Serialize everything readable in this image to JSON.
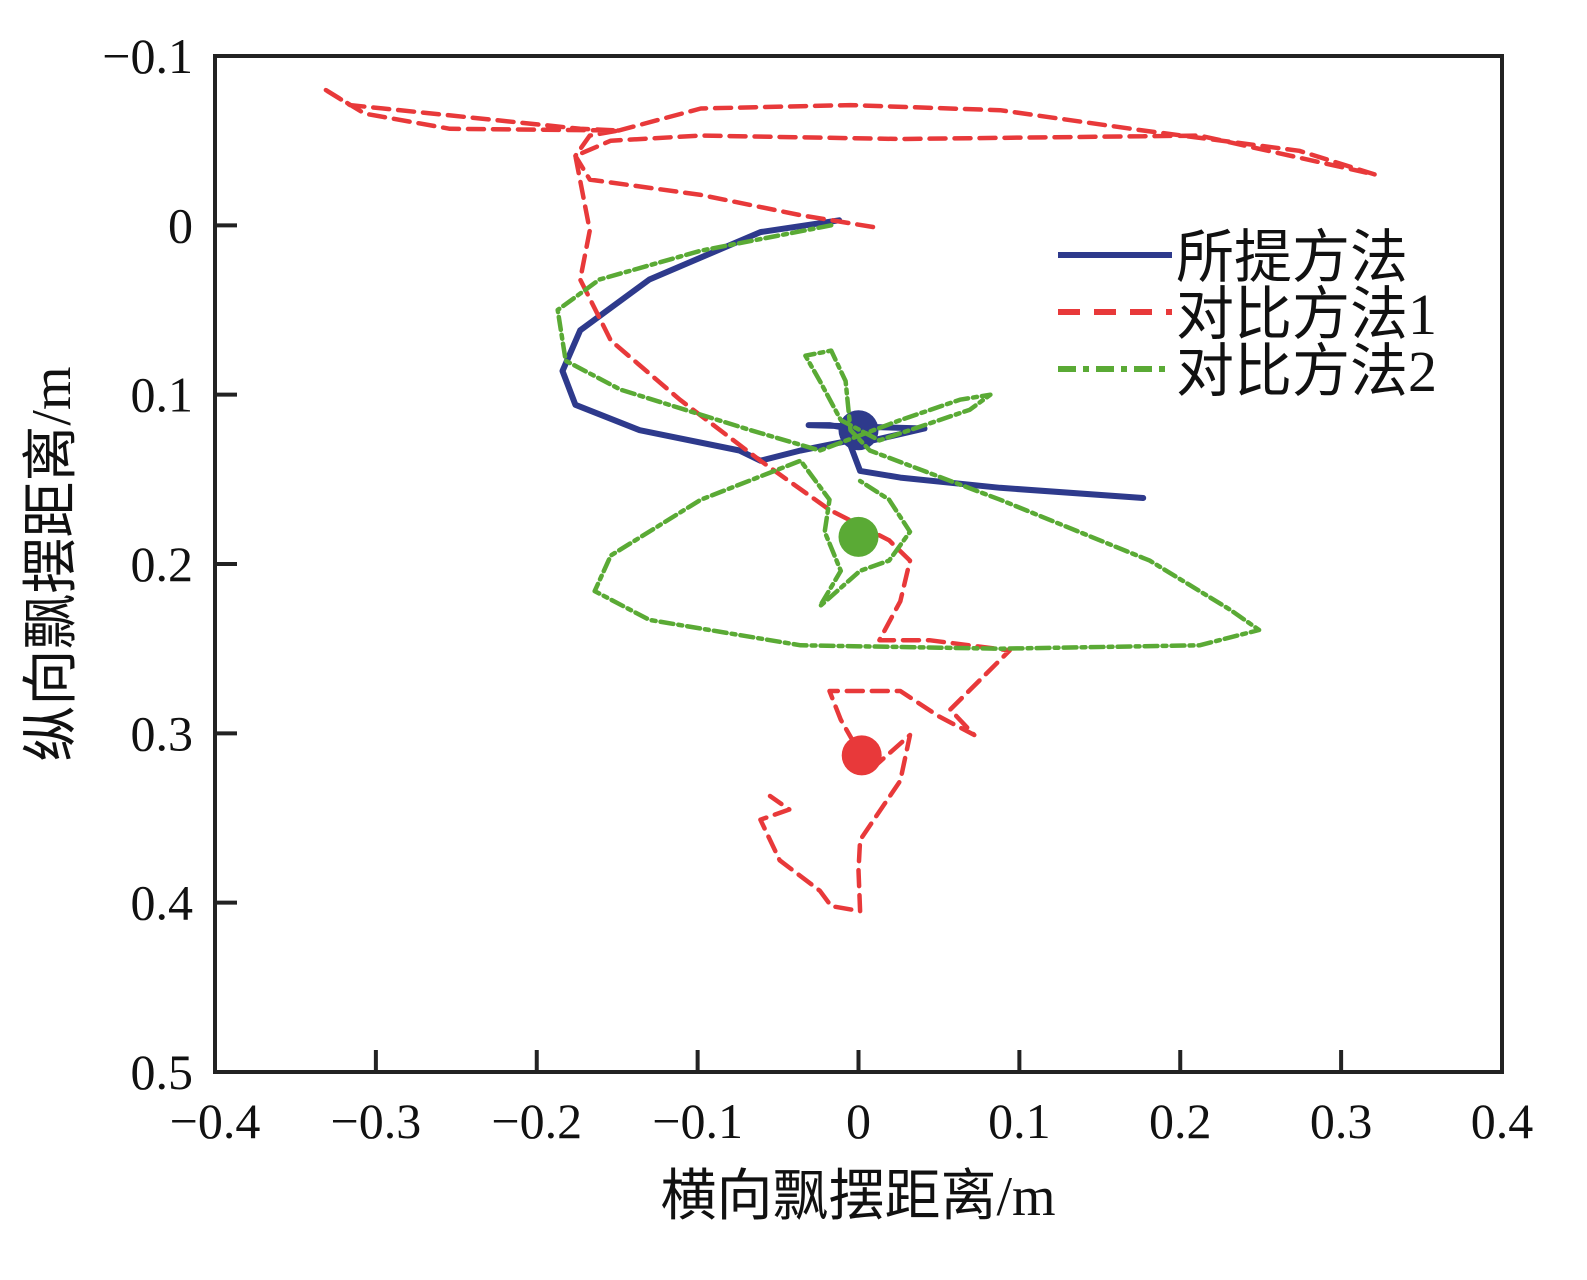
{
  "chart_data": {
    "type": "line",
    "title": "",
    "xlabel": "横向飘摆距离/m",
    "ylabel": "纵向飘摆距离/m",
    "xlim": [
      -0.4,
      0.4
    ],
    "ylim": [
      -0.1,
      0.5
    ],
    "y_inverted": true,
    "xticks": [
      "−0.4",
      "−0.3",
      "−0.2",
      "−0.1",
      "0",
      "0.1",
      "0.2",
      "0.3",
      "0.4"
    ],
    "xtick_values": [
      -0.4,
      -0.3,
      -0.2,
      -0.1,
      0,
      0.1,
      0.2,
      0.3,
      0.4
    ],
    "yticks": [
      "−0.1",
      "0",
      "0.1",
      "0.2",
      "0.3",
      "0.4",
      "0.5"
    ],
    "ytick_values": [
      -0.1,
      0,
      0.1,
      0.2,
      0.3,
      0.4,
      0.5
    ],
    "grid": false,
    "legend_position": "top-right",
    "series": [
      {
        "name": "所提方法",
        "color": "#2e3a8c",
        "style": "solid",
        "points": [
          [
            -0.012,
            -0.003
          ],
          [
            -0.061,
            0.004
          ],
          [
            -0.13,
            0.032
          ],
          [
            -0.173,
            0.062
          ],
          [
            -0.184,
            0.086
          ],
          [
            -0.176,
            0.106
          ],
          [
            -0.136,
            0.121
          ],
          [
            -0.074,
            0.133
          ],
          [
            -0.061,
            0.139
          ],
          [
            -0.036,
            0.133
          ],
          [
            -0.005,
            0.127
          ],
          [
            0.0,
            0.121
          ],
          [
            -0.018,
            0.118
          ],
          [
            -0.031,
            0.118
          ],
          [
            0.041,
            0.12
          ],
          [
            -0.005,
            0.13
          ],
          [
            0.001,
            0.145
          ],
          [
            0.026,
            0.149
          ],
          [
            0.088,
            0.155
          ],
          [
            0.177,
            0.161
          ]
        ],
        "end_marker": [
          0.0,
          0.121
        ]
      },
      {
        "name": "对比方法1",
        "color": "#e8393a",
        "style": "dashed",
        "points": [
          [
            0.009,
            0.001
          ],
          [
            -0.036,
            -0.006
          ],
          [
            -0.098,
            -0.018
          ],
          [
            -0.167,
            -0.027
          ],
          [
            -0.176,
            -0.041
          ],
          [
            -0.167,
            -0.053
          ],
          [
            -0.149,
            -0.056
          ],
          [
            -0.173,
            -0.057
          ],
          [
            -0.316,
            -0.071
          ],
          [
            -0.333,
            -0.081
          ],
          [
            -0.307,
            -0.066
          ],
          [
            -0.254,
            -0.057
          ],
          [
            -0.149,
            -0.056
          ],
          [
            -0.098,
            -0.069
          ],
          [
            -0.005,
            -0.071
          ],
          [
            0.088,
            -0.068
          ],
          [
            0.177,
            -0.056
          ],
          [
            0.274,
            -0.044
          ],
          [
            0.321,
            -0.03
          ],
          [
            0.212,
            -0.053
          ],
          [
            0.026,
            -0.051
          ],
          [
            -0.098,
            -0.053
          ],
          [
            -0.154,
            -0.05
          ],
          [
            -0.176,
            -0.041
          ],
          [
            -0.167,
            0.003
          ],
          [
            -0.173,
            0.032
          ],
          [
            -0.154,
            0.068
          ],
          [
            -0.111,
            0.103
          ],
          [
            -0.061,
            0.139
          ],
          [
            -0.018,
            0.168
          ],
          [
            0.019,
            0.186
          ],
          [
            0.032,
            0.198
          ],
          [
            0.026,
            0.222
          ],
          [
            0.013,
            0.245
          ],
          [
            0.044,
            0.245
          ],
          [
            0.094,
            0.251
          ],
          [
            0.057,
            0.286
          ],
          [
            0.072,
            0.301
          ],
          [
            0.05,
            0.29
          ],
          [
            0.026,
            0.275
          ],
          [
            -0.018,
            0.275
          ],
          [
            -0.011,
            0.292
          ],
          [
            0.007,
            0.322
          ],
          [
            0.032,
            0.301
          ],
          [
            0.026,
            0.328
          ],
          [
            0.001,
            0.363
          ],
          [
            0.0,
            0.381
          ],
          [
            0.001,
            0.405
          ],
          [
            -0.017,
            0.402
          ],
          [
            -0.024,
            0.393
          ],
          [
            -0.049,
            0.375
          ],
          [
            -0.061,
            0.351
          ],
          [
            -0.043,
            0.345
          ],
          [
            -0.055,
            0.337
          ]
        ],
        "end_marker": [
          0.002,
          0.313
        ]
      },
      {
        "name": "对比方法2",
        "color": "#5aaa35",
        "style": "dashdot",
        "points": [
          [
            -0.017,
            0.0
          ],
          [
            -0.098,
            0.015
          ],
          [
            -0.161,
            0.032
          ],
          [
            -0.187,
            0.05
          ],
          [
            -0.182,
            0.08
          ],
          [
            -0.148,
            0.097
          ],
          [
            -0.067,
            0.121
          ],
          [
            -0.024,
            0.133
          ],
          [
            0.026,
            0.115
          ],
          [
            0.063,
            0.103
          ],
          [
            0.082,
            0.1
          ],
          [
            0.069,
            0.109
          ],
          [
            0.013,
            0.127
          ],
          [
            -0.011,
            0.115
          ],
          [
            -0.024,
            0.092
          ],
          [
            -0.033,
            0.077
          ],
          [
            -0.017,
            0.074
          ],
          [
            -0.008,
            0.092
          ],
          [
            -0.005,
            0.121
          ],
          [
            0.007,
            0.133
          ],
          [
            0.088,
            0.162
          ],
          [
            0.181,
            0.198
          ],
          [
            0.231,
            0.227
          ],
          [
            0.249,
            0.239
          ],
          [
            0.212,
            0.248
          ],
          [
            0.088,
            0.25
          ],
          [
            -0.036,
            0.248
          ],
          [
            -0.13,
            0.233
          ],
          [
            -0.164,
            0.216
          ],
          [
            -0.154,
            0.195
          ],
          [
            -0.098,
            0.162
          ],
          [
            -0.036,
            0.139
          ],
          [
            -0.018,
            0.162
          ],
          [
            -0.021,
            0.181
          ],
          [
            -0.011,
            0.204
          ],
          [
            -0.024,
            0.225
          ],
          [
            0.001,
            0.204
          ],
          [
            0.019,
            0.198
          ],
          [
            0.032,
            0.181
          ],
          [
            0.019,
            0.162
          ],
          [
            0.001,
            0.151
          ]
        ],
        "end_marker": [
          0.0,
          0.184
        ]
      }
    ]
  }
}
